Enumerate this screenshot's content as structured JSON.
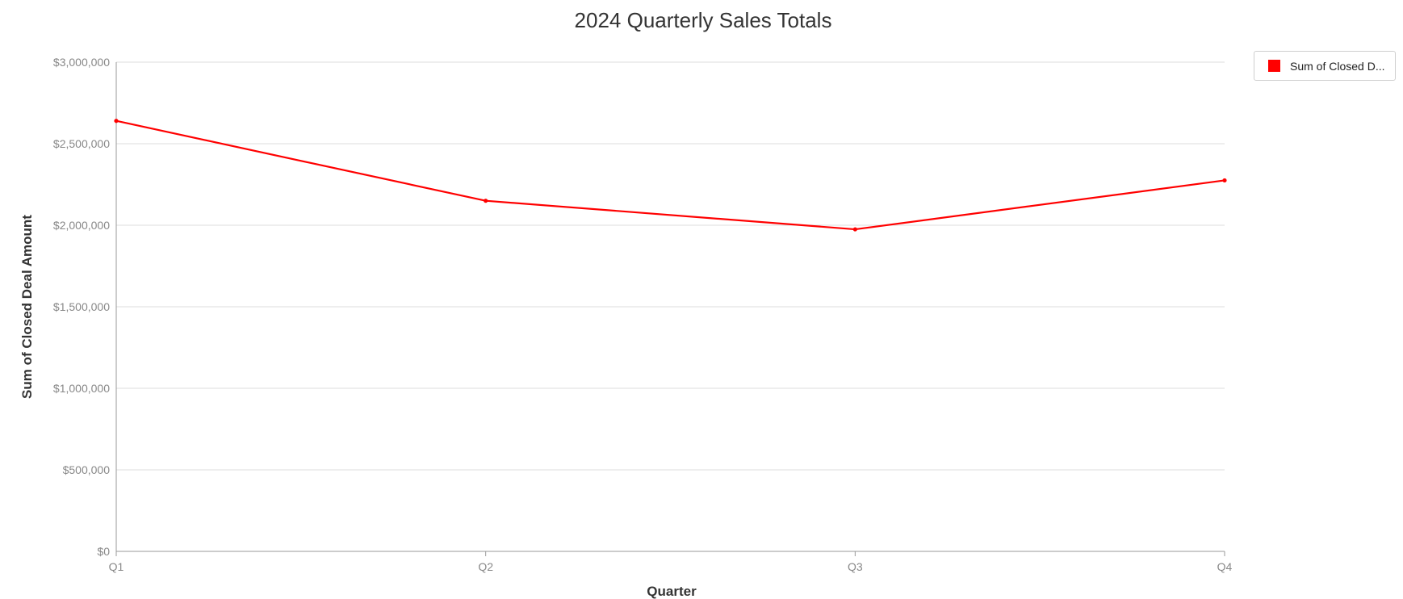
{
  "chart_data": {
    "type": "line",
    "title": "2024 Quarterly Sales Totals",
    "xlabel": "Quarter",
    "ylabel": "Sum of Closed Deal Amount",
    "categories": [
      "Q1",
      "Q2",
      "Q3",
      "Q4"
    ],
    "ylim": [
      0,
      3000000
    ],
    "yticks": [
      0,
      500000,
      1000000,
      1500000,
      2000000,
      2500000,
      3000000
    ],
    "ytick_labels": [
      "$0",
      "$500,000",
      "$1,000,000",
      "$1,500,000",
      "$2,000,000",
      "$2,500,000",
      "$3,000,000"
    ],
    "grid": true,
    "legend_position": "top-right",
    "series": [
      {
        "name": "Sum of Closed D...",
        "color": "#ff0000",
        "values": [
          2640000,
          2150000,
          1975000,
          2275000
        ]
      }
    ]
  }
}
